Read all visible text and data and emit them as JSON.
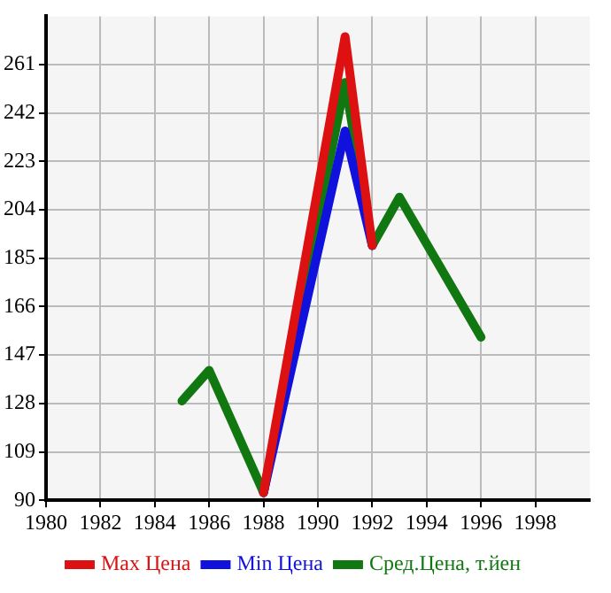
{
  "chart_data": {
    "type": "line",
    "x": [
      1985,
      1986,
      1988,
      1991,
      1992,
      1993,
      1996
    ],
    "series": [
      {
        "name": "Max Цена",
        "color": "#dd1111",
        "values": [
          null,
          null,
          93,
          272,
          190,
          null,
          null
        ]
      },
      {
        "name": "Min Цена",
        "color": "#1111dd",
        "values": [
          null,
          null,
          93,
          235,
          190,
          null,
          null
        ]
      },
      {
        "name": "Сред.Цена, т.йен",
        "color": "#117711",
        "values": [
          129,
          141,
          93,
          254,
          190,
          209,
          154
        ]
      }
    ],
    "xlim": [
      1980,
      2000
    ],
    "xticks": [
      1980,
      1982,
      1984,
      1986,
      1988,
      1990,
      1992,
      1994,
      1996,
      1998
    ],
    "ylim": [
      90,
      280
    ],
    "yticks": [
      90,
      109,
      128,
      147,
      166,
      185,
      204,
      223,
      242,
      261
    ],
    "grid": true,
    "legend": "bottom",
    "marker": "none",
    "line_style": "solid"
  }
}
